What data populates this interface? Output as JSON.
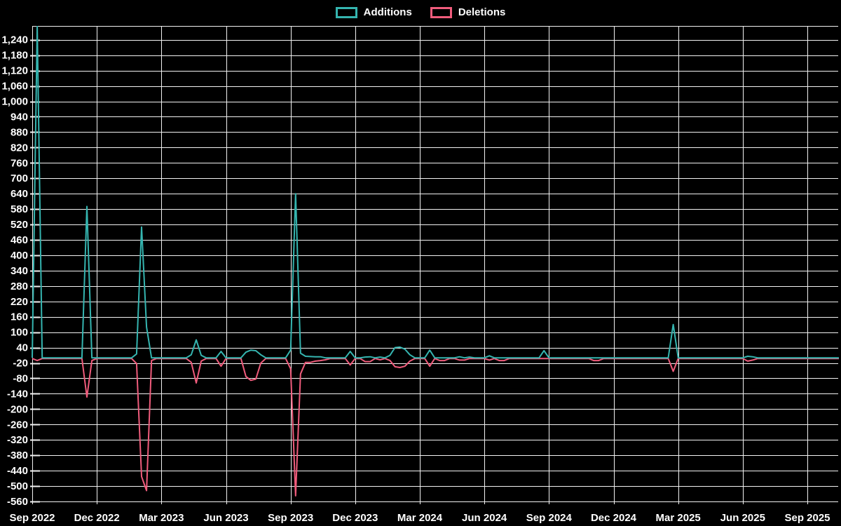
{
  "page": {
    "background": "#000000"
  },
  "legend": {
    "items": [
      {
        "label": "Additions",
        "color": "#35b5b0"
      },
      {
        "label": "Deletions",
        "color": "#f05c7c"
      }
    ]
  },
  "chart_data": {
    "type": "line",
    "description": "Weekly additions and deletions line chart",
    "background": "#000000",
    "grid": true,
    "legend_position": "top",
    "grid_color": "#f2f2f2",
    "x_axis": {
      "tick_labels": [
        "Sep 2022",
        "Dec 2022",
        "Mar 2023",
        "Jun 2023",
        "Sep 2023",
        "Dec 2023",
        "Mar 2024",
        "Jun 2024",
        "Sep 2024",
        "Dec 2024",
        "Mar 2025",
        "Jun 2025",
        "Sep 2025"
      ],
      "tick_weeks": [
        0,
        13,
        26,
        39,
        52,
        65,
        78,
        91,
        104,
        117,
        130,
        143,
        156
      ]
    },
    "y_axis": {
      "tick_labels": [
        "1,240",
        "1,180",
        "1,120",
        "1,060",
        "1,000",
        "940",
        "880",
        "820",
        "760",
        "700",
        "640",
        "580",
        "520",
        "460",
        "400",
        "340",
        "280",
        "220",
        "160",
        "100",
        "40",
        "-20",
        "-80",
        "-140",
        "-200",
        "-260",
        "-320",
        "-380",
        "-440",
        "-500",
        "-560"
      ],
      "tick_step": 60,
      "range": [
        -560,
        1294
      ]
    },
    "weeks_total": 163,
    "series": [
      {
        "name": "Additions",
        "color": "#35b5b0",
        "default": 0,
        "points": {
          "1": 1295,
          "11": 590,
          "21": 15,
          "22": 510,
          "23": 120,
          "32": 12,
          "33": 70,
          "34": 10,
          "38": 25,
          "43": 22,
          "44": 30,
          "45": 28,
          "46": 12,
          "52": 30,
          "53": 640,
          "54": 18,
          "55": 6,
          "56": 5,
          "57": 4,
          "58": 4,
          "64": 25,
          "67": 3,
          "68": 4,
          "70": 3,
          "72": 10,
          "73": 40,
          "74": 42,
          "75": 34,
          "76": 12,
          "80": 30,
          "86": 4,
          "88": 3,
          "92": 8,
          "103": 28,
          "129": 130,
          "144": 6,
          "145": 4
        }
      },
      {
        "name": "Deletions",
        "color": "#f05c7c",
        "default": 0,
        "points": {
          "1": -8,
          "11": -150,
          "12": -8,
          "21": -20,
          "22": -460,
          "23": -515,
          "24": -8,
          "32": -15,
          "33": -95,
          "34": -10,
          "38": -30,
          "43": -70,
          "44": -85,
          "45": -80,
          "46": -18,
          "52": -40,
          "53": -535,
          "54": -60,
          "55": -15,
          "56": -15,
          "57": -10,
          "58": -8,
          "59": -5,
          "64": -25,
          "67": -12,
          "68": -12,
          "70": -5,
          "72": -8,
          "73": -32,
          "74": -35,
          "75": -30,
          "76": -10,
          "80": -30,
          "82": -8,
          "83": -8,
          "86": -6,
          "87": -6,
          "92": -6,
          "94": -8,
          "95": -8,
          "113": -8,
          "114": -8,
          "129": -50,
          "144": -10,
          "145": -6
        }
      }
    ]
  }
}
